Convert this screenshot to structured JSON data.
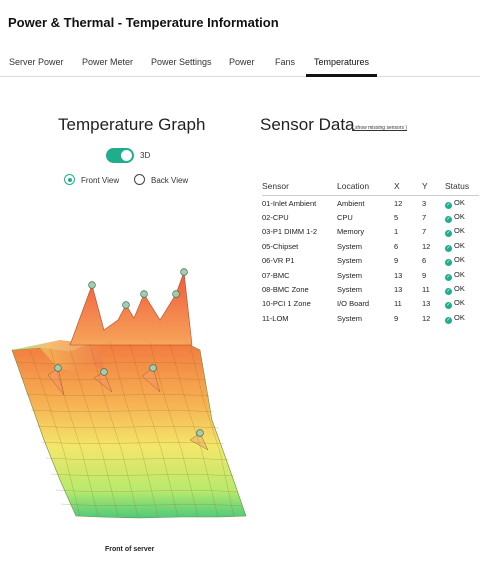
{
  "header": {
    "title": "Power & Thermal - Temperature Information"
  },
  "tabs": [
    {
      "label": "Server Power"
    },
    {
      "label": "Power Meter"
    },
    {
      "label": "Power Settings"
    },
    {
      "label": "Power"
    },
    {
      "label": "Fans"
    },
    {
      "label": "Temperatures",
      "active": true
    }
  ],
  "graph": {
    "title": "Temperature Graph",
    "toggle": {
      "label": "3D",
      "on": true
    },
    "views": [
      {
        "label": "Front View",
        "selected": true
      },
      {
        "label": "Back View",
        "selected": false
      }
    ],
    "caption": "Front of server"
  },
  "sensor_data": {
    "title": "Sensor Data",
    "missing_link": "( show missing sensors )",
    "columns": [
      "Sensor",
      "Location",
      "X",
      "Y",
      "Status"
    ],
    "rows": [
      {
        "sensor": "01-Inlet Ambient",
        "location": "Ambient",
        "x": "12",
        "y": "3",
        "status": "OK"
      },
      {
        "sensor": "02-CPU",
        "location": "CPU",
        "x": "5",
        "y": "7",
        "status": "OK"
      },
      {
        "sensor": "03-P1 DIMM 1-2",
        "location": "Memory",
        "x": "1",
        "y": "7",
        "status": "OK"
      },
      {
        "sensor": "05-Chipset",
        "location": "System",
        "x": "6",
        "y": "12",
        "status": "OK"
      },
      {
        "sensor": "06-VR P1",
        "location": "System",
        "x": "9",
        "y": "6",
        "status": "OK"
      },
      {
        "sensor": "07-BMC",
        "location": "System",
        "x": "13",
        "y": "9",
        "status": "OK"
      },
      {
        "sensor": "08-BMC Zone",
        "location": "System",
        "x": "13",
        "y": "11",
        "status": "OK"
      },
      {
        "sensor": "10-PCI 1 Zone",
        "location": "I/O Board",
        "x": "11",
        "y": "13",
        "status": "OK"
      },
      {
        "sensor": "11-LOM",
        "location": "System",
        "x": "9",
        "y": "12",
        "status": "OK"
      }
    ]
  },
  "colors": {
    "accent": "#1eae8e",
    "ok": "#1eae8e"
  },
  "icons": {
    "status_ok": "check-circle-icon"
  }
}
